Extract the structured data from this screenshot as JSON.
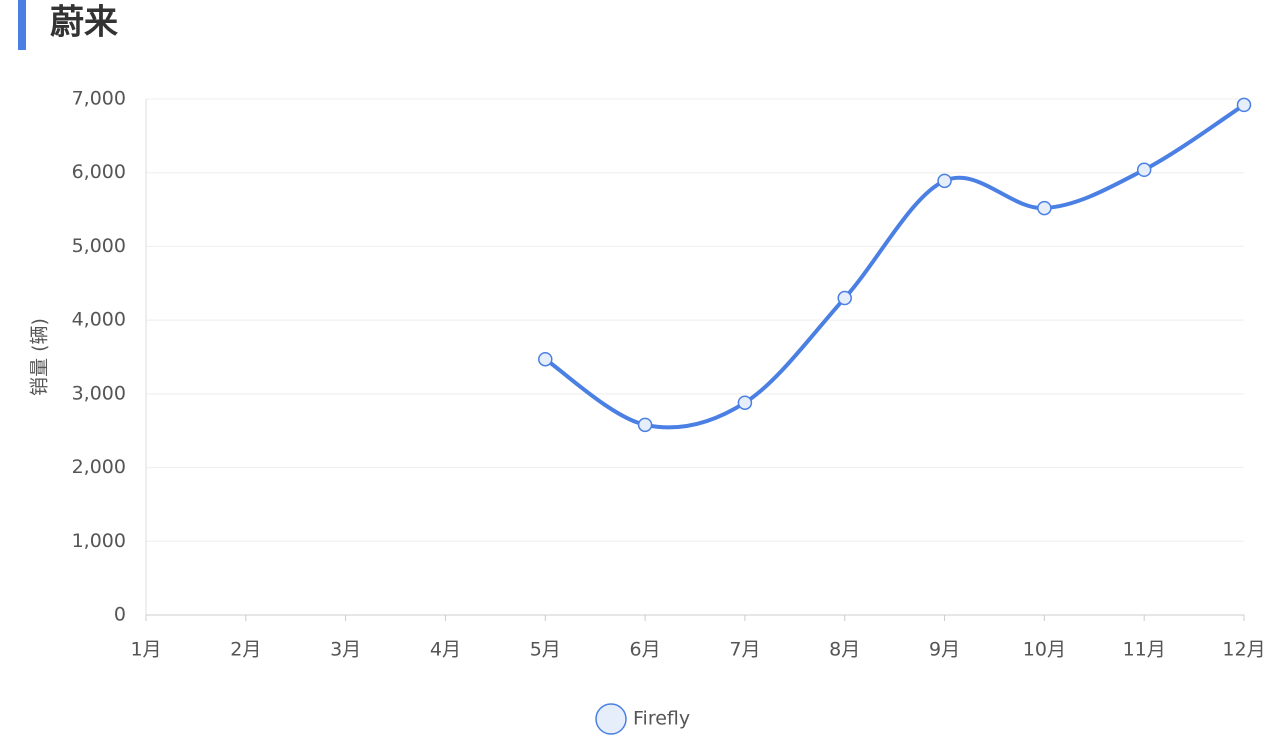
{
  "chart_data": {
    "type": "line",
    "title": "蔚来",
    "y_label": "销量 (辆)",
    "categories": [
      "1月",
      "2月",
      "3月",
      "4月",
      "5月",
      "6月",
      "7月",
      "8月",
      "9月",
      "10月",
      "11月",
      "12月"
    ],
    "series": [
      {
        "name": "Firefly",
        "color": "#4a7fe3",
        "values": [
          null,
          null,
          null,
          null,
          3470,
          2580,
          2880,
          4300,
          5890,
          5520,
          6040,
          6920
        ]
      }
    ],
    "ylim": [
      0,
      7000
    ],
    "yticks": [
      0,
      {
        "value": 1000,
        "label": "1,000"
      },
      {
        "value": 2000,
        "label": "2,000"
      },
      {
        "value": 3000,
        "label": "3,000"
      },
      {
        "value": 4000,
        "label": "4,000"
      },
      {
        "value": 5000,
        "label": "5,000"
      },
      {
        "value": 6000,
        "label": "6,000"
      },
      {
        "value": 7000,
        "label": "7,000"
      }
    ],
    "grid": true,
    "legend": "bottom",
    "smooth": true
  }
}
